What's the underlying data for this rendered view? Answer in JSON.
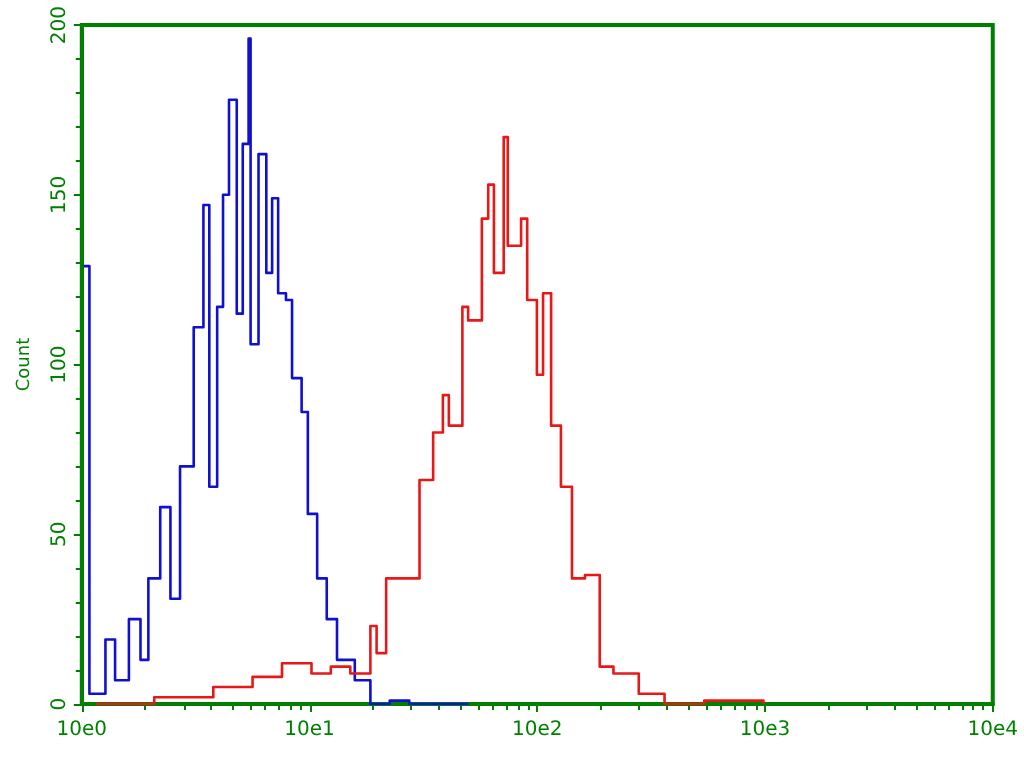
{
  "chart_data": {
    "type": "step",
    "ylabel": "Count",
    "log": "x",
    "grid": false,
    "marker": "none",
    "line_style": "solid",
    "xlim": [
      10,
      100000
    ],
    "xticks": [
      {
        "value": 10,
        "label": "10e0"
      },
      {
        "value": 100,
        "label": "10e1"
      },
      {
        "value": 1000,
        "label": "10e2"
      },
      {
        "value": 10000,
        "label": "10e3"
      },
      {
        "value": 100000,
        "label": "10e4"
      }
    ],
    "ylim": [
      0,
      200
    ],
    "yticks": [
      0,
      50,
      100,
      150,
      200
    ],
    "series": [
      {
        "color": "#1010d0",
        "x": [
          10.2,
          10.8,
          12.7,
          14,
          16.1,
          18.1,
          19.6,
          22.1,
          24.5,
          27,
          31,
          34.2,
          36.3,
          39.3,
          41.7,
          44.3,
          47.9,
          50.9,
          54,
          55.1,
          59.7,
          64.6,
          68.5,
          72.8,
          78.8,
          83.8,
          92.3,
          98.3,
          108,
          119,
          132,
          158,
          185,
          225,
          274,
          500
        ],
        "values": [
          129,
          3,
          19,
          7,
          25,
          13,
          37,
          58,
          31,
          70,
          111,
          147,
          64,
          117,
          150,
          178,
          115,
          165,
          196,
          106,
          162,
          127,
          149,
          121,
          119,
          96,
          86,
          56,
          37,
          25,
          13,
          7,
          0,
          1,
          0,
          0
        ]
      },
      {
        "color": "#e81818",
        "x": [
          11.5,
          20.8,
          37.8,
          56.2,
          75.7,
          102,
          124,
          151,
          185,
          197,
          217,
          275,
          304,
          349,
          385,
          409,
          469,
          497,
          571,
          609,
          645,
          712,
          742,
          849,
          903,
          996,
          1060,
          1150,
          1270,
          1420,
          1620,
          1880,
          2160,
          2790,
          3620,
          5410,
          9840
        ],
        "values": [
          0,
          2,
          5,
          8,
          12,
          9,
          11,
          9,
          23,
          15,
          37,
          37,
          66,
          80,
          91,
          82,
          117,
          113,
          143,
          153,
          127,
          167,
          135,
          143,
          119,
          97,
          121,
          82,
          64,
          37,
          38,
          11,
          9,
          3,
          0,
          1,
          0
        ]
      }
    ]
  }
}
